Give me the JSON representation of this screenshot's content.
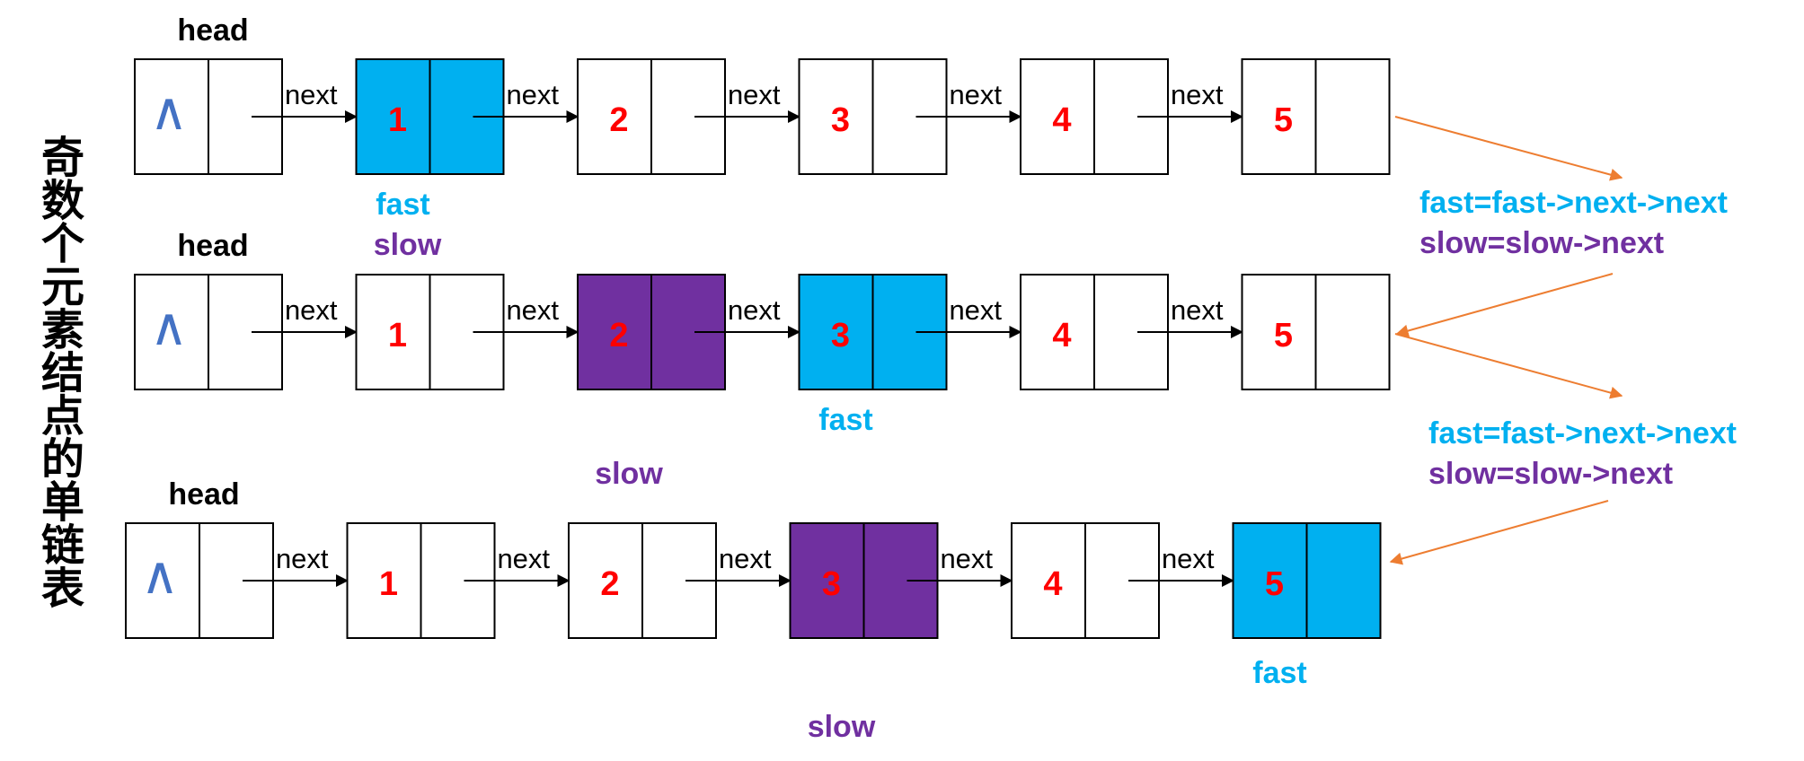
{
  "title": "奇数个元素结点的单链表",
  "null_symbol": "∧",
  "head_label": "head",
  "next_label": "next",
  "pointer_labels": {
    "fast": "fast",
    "slow": "slow"
  },
  "step_code": {
    "fast": "fast=fast->next->next",
    "slow": "slow=slow->next"
  },
  "colors": {
    "fast": "#00b0f0",
    "slow": "#7030a0",
    "node_value": "#ff0000",
    "arrow_connector": "#ed7d31",
    "null_symbol": "#4472c4"
  },
  "rows": [
    {
      "step": 1,
      "values": [
        "1",
        "2",
        "3",
        "4",
        "5"
      ],
      "fast_node": "1",
      "slow_node": "1"
    },
    {
      "step": 2,
      "values": [
        "1",
        "2",
        "3",
        "4",
        "5"
      ],
      "fast_node": "3",
      "slow_node": "2"
    },
    {
      "step": 3,
      "values": [
        "1",
        "2",
        "3",
        "4",
        "5"
      ],
      "fast_node": "5",
      "slow_node": "3"
    }
  ]
}
